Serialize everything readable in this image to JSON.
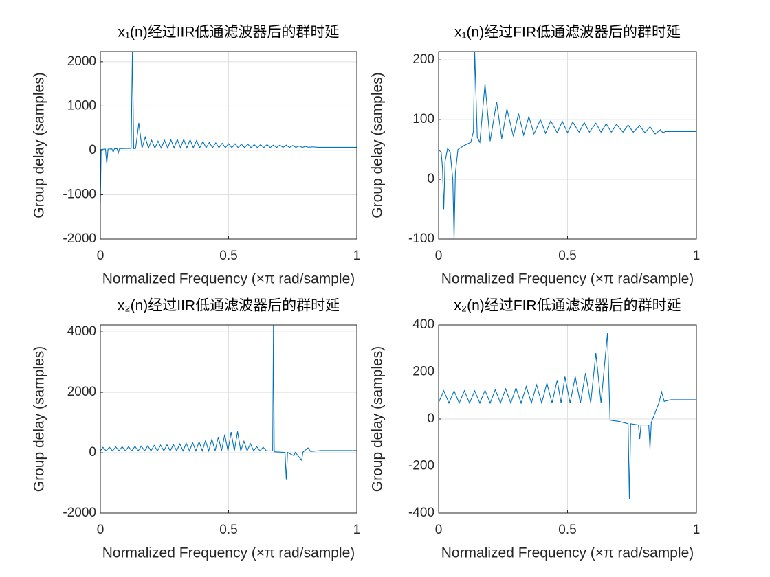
{
  "chart_data": [
    {
      "type": "line",
      "title": "x₁(n)经过IIR低通滤波器后的群时延",
      "x_label": "Normalized Frequency (×π rad/sample)",
      "y_label": "Group delay (samples)",
      "grid": true,
      "xlim": [
        0,
        1
      ],
      "xticks": [
        0,
        0.5,
        1
      ],
      "ylim": [
        -2000,
        2230
      ],
      "yticks": [
        -2000,
        -1000,
        0,
        1000,
        2000
      ],
      "color": "#0072bd",
      "x": [
        0,
        0.003,
        0.01,
        0.02,
        0.025,
        0.03,
        0.045,
        0.05,
        0.055,
        0.065,
        0.07,
        0.075,
        0.1,
        0.12,
        0.125,
        0.13,
        0.1375,
        0.15,
        0.1625,
        0.175,
        0.1875,
        0.2,
        0.2125,
        0.225,
        0.2375,
        0.25,
        0.2625,
        0.275,
        0.2875,
        0.3,
        0.3125,
        0.325,
        0.3375,
        0.35,
        0.3625,
        0.375,
        0.3875,
        0.4,
        0.4125,
        0.425,
        0.4375,
        0.45,
        0.4625,
        0.475,
        0.4875,
        0.5,
        0.5125,
        0.525,
        0.5375,
        0.55,
        0.5625,
        0.575,
        0.5875,
        0.6,
        0.6125,
        0.625,
        0.6375,
        0.65,
        0.6625,
        0.675,
        0.6875,
        0.7,
        0.7125,
        0.725,
        0.7375,
        0.75,
        0.7625,
        0.775,
        0.7875,
        0.8,
        0.8125,
        0.825,
        0.85,
        1
      ],
      "values": [
        -1200,
        20,
        25,
        30,
        -300,
        30,
        35,
        -40,
        35,
        40,
        -60,
        40,
        45,
        45,
        2230,
        40,
        45,
        620,
        50,
        300,
        50,
        230,
        52,
        210,
        54,
        230,
        55,
        240,
        56,
        250,
        57,
        250,
        58,
        240,
        59,
        220,
        60,
        200,
        60,
        180,
        61,
        170,
        62,
        160,
        62,
        150,
        63,
        150,
        63,
        140,
        64,
        140,
        64,
        130,
        65,
        130,
        65,
        130,
        66,
        120,
        66,
        120,
        67,
        120,
        67,
        110,
        68,
        100,
        68,
        90,
        69,
        80,
        70,
        70
      ]
    },
    {
      "type": "line",
      "title": "x₁(n)经过FIR低通滤波器后的群时延",
      "x_label": "Normalized Frequency (×π rad/sample)",
      "y_label": "Group delay (samples)",
      "grid": true,
      "xlim": [
        0,
        1
      ],
      "xticks": [
        0,
        0.5,
        1
      ],
      "ylim": [
        -100,
        214
      ],
      "yticks": [
        -100,
        0,
        100,
        200
      ],
      "color": "#0072bd",
      "x": [
        0,
        0.01,
        0.015,
        0.02,
        0.025,
        0.035,
        0.045,
        0.055,
        0.06,
        0.065,
        0.075,
        0.1,
        0.125,
        0.135,
        0.14,
        0.15,
        0.16,
        0.18,
        0.2,
        0.225,
        0.245,
        0.265,
        0.29,
        0.31,
        0.33,
        0.35,
        0.37,
        0.395,
        0.415,
        0.435,
        0.46,
        0.48,
        0.5,
        0.52,
        0.545,
        0.565,
        0.585,
        0.61,
        0.63,
        0.65,
        0.67,
        0.69,
        0.715,
        0.735,
        0.755,
        0.78,
        0.8,
        0.82,
        0.84,
        0.86,
        0.87,
        0.88,
        1
      ],
      "values": [
        50,
        45,
        20,
        -50,
        30,
        52,
        45,
        0,
        -100,
        10,
        50,
        57,
        62,
        80,
        214,
        70,
        62,
        160,
        64,
        130,
        68,
        118,
        72,
        110,
        74,
        105,
        76,
        100,
        77,
        98,
        78,
        97,
        78,
        96,
        79,
        95,
        79,
        94,
        79,
        93,
        79,
        92,
        79,
        91,
        79,
        90,
        78,
        88,
        76,
        83,
        78,
        80,
        80
      ]
    },
    {
      "type": "line",
      "title": "x₂(n)经过IIR低通滤波器后的群时延",
      "x_label": "Normalized Frequency (×π rad/sample)",
      "y_label": "Group delay (samples)",
      "grid": true,
      "xlim": [
        0,
        1
      ],
      "xticks": [
        0,
        0.5,
        1
      ],
      "ylim": [
        -2000,
        4230
      ],
      "yticks": [
        -2000,
        0,
        2000,
        4000
      ],
      "color": "#0072bd",
      "x": [
        0,
        0.01,
        0.0225,
        0.035,
        0.0475,
        0.06,
        0.0725,
        0.085,
        0.0975,
        0.11,
        0.1225,
        0.135,
        0.1475,
        0.16,
        0.1725,
        0.185,
        0.1975,
        0.21,
        0.2225,
        0.235,
        0.2475,
        0.26,
        0.2725,
        0.285,
        0.2975,
        0.31,
        0.3225,
        0.335,
        0.3475,
        0.36,
        0.3725,
        0.385,
        0.3975,
        0.41,
        0.4225,
        0.435,
        0.4475,
        0.46,
        0.4725,
        0.485,
        0.4975,
        0.51,
        0.5225,
        0.535,
        0.5475,
        0.56,
        0.5725,
        0.585,
        0.5975,
        0.61,
        0.6225,
        0.635,
        0.6475,
        0.66,
        0.672,
        0.675,
        0.678,
        0.72,
        0.725,
        0.73,
        0.755,
        0.76,
        0.785,
        0.79,
        0.81,
        0.82,
        0.86,
        1
      ],
      "values": [
        60,
        180,
        60,
        180,
        60,
        190,
        60,
        200,
        60,
        200,
        60,
        210,
        60,
        220,
        60,
        230,
        60,
        240,
        60,
        250,
        60,
        260,
        60,
        270,
        60,
        290,
        60,
        310,
        60,
        330,
        60,
        360,
        60,
        400,
        60,
        450,
        60,
        520,
        60,
        600,
        60,
        680,
        60,
        700,
        60,
        380,
        60,
        300,
        60,
        200,
        60,
        180,
        60,
        60,
        60,
        4230,
        30,
        10,
        -900,
        10,
        -100,
        10,
        -250,
        20,
        160,
        40,
        70,
        70
      ]
    },
    {
      "type": "line",
      "title": "x₂(n)经过FIR低通滤波器后的群时延",
      "x_label": "Normalized Frequency (×π rad/sample)",
      "y_label": "Group delay (samples)",
      "grid": true,
      "xlim": [
        0,
        1
      ],
      "xticks": [
        0,
        0.5,
        1
      ],
      "ylim": [
        -400,
        400
      ],
      "yticks": [
        -400,
        -200,
        0,
        200,
        400
      ],
      "color": "#0072bd",
      "x": [
        0,
        0.02,
        0.04,
        0.06,
        0.08,
        0.1,
        0.12,
        0.14,
        0.16,
        0.18,
        0.2,
        0.22,
        0.24,
        0.26,
        0.28,
        0.3,
        0.32,
        0.34,
        0.36,
        0.38,
        0.4,
        0.42,
        0.44,
        0.46,
        0.475,
        0.49,
        0.51,
        0.53,
        0.55,
        0.57,
        0.59,
        0.61,
        0.63,
        0.655,
        0.665,
        0.7,
        0.735,
        0.74,
        0.745,
        0.775,
        0.78,
        0.785,
        0.815,
        0.82,
        0.825,
        0.855,
        0.865,
        0.875,
        0.9,
        1
      ],
      "values": [
        70,
        120,
        68,
        120,
        68,
        120,
        68,
        120,
        68,
        122,
        68,
        125,
        68,
        128,
        68,
        132,
        68,
        138,
        68,
        145,
        68,
        152,
        68,
        165,
        68,
        180,
        68,
        180,
        68,
        195,
        68,
        280,
        68,
        365,
        -5,
        -10,
        -20,
        -340,
        -20,
        -25,
        -85,
        -25,
        -25,
        -125,
        -15,
        70,
        115,
        75,
        82,
        82
      ]
    }
  ]
}
